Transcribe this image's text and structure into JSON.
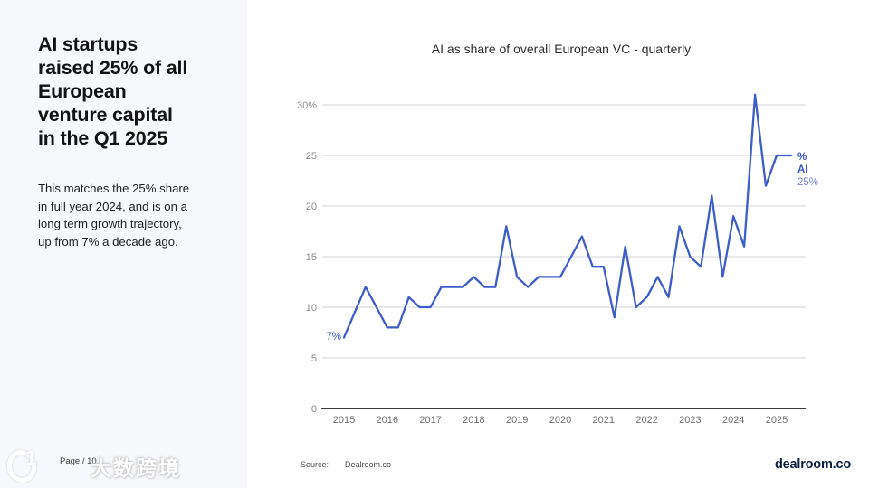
{
  "sidebar": {
    "title": "AI startups raised 25% of all European venture capital in the Q1 2025",
    "title_lines": [
      "AI startups",
      "raised 25% of all",
      "European",
      "venture capital",
      "in the Q1 2025"
    ],
    "body_lines": [
      "This matches the 25% share",
      "in full year 2024, and is on a",
      "long term growth trajectory,",
      "up from 7% a decade ago."
    ],
    "page_label": "Page / 10",
    "watermark_logo": "1",
    "watermark_text": "大数跨境"
  },
  "chart": {
    "title": "AI as share of overall European VC - quarterly"
  },
  "footer": {
    "source_prefix": "Source:",
    "source_name": "Dealroom.co",
    "brand": "dealroom.co"
  },
  "colors": {
    "line": "#3e5dc7",
    "annotation_blue": "#3a57c4",
    "value_blue": "#7282d1",
    "grid": "#dcdcdc",
    "axis": "#3a3a3a",
    "y_tick_text": "#8b8b8b",
    "x_tick_text": "#6f6f6f",
    "sidebar_bg": "#f7f8fb",
    "brand_navy": "#0d1d41"
  },
  "chart_data": {
    "type": "line",
    "title": "AI as share of overall European VC - quarterly",
    "unit": "%",
    "frequency": "quarterly",
    "x_start": "2015 Q1",
    "x_end": "2025 Q1",
    "x_tick_labels": [
      "2015",
      "2016",
      "2017",
      "2018",
      "2019",
      "2020",
      "2021",
      "2022",
      "2023",
      "2024",
      "2025"
    ],
    "y_ticks": [
      0,
      5,
      10,
      15,
      20,
      25,
      30
    ],
    "y_tick_labels": [
      "0",
      "5",
      "10",
      "15",
      "20",
      "25",
      "30%"
    ],
    "ylim": [
      0,
      32
    ],
    "grid": "horizontal",
    "series": [
      {
        "name": "% AI",
        "values": [
          7,
          9.5,
          12,
          10,
          8,
          8,
          11,
          10,
          10,
          12,
          12,
          12,
          13,
          12,
          12,
          18,
          13,
          12,
          13,
          13,
          13,
          15,
          17,
          14,
          14,
          9,
          16,
          10,
          11,
          13,
          11,
          18,
          15,
          14,
          21,
          13,
          19,
          16,
          31,
          22,
          25
        ]
      }
    ],
    "start_annotation": "7%",
    "end_label_lines": [
      "%",
      "AI"
    ],
    "end_value_label": "25%"
  }
}
